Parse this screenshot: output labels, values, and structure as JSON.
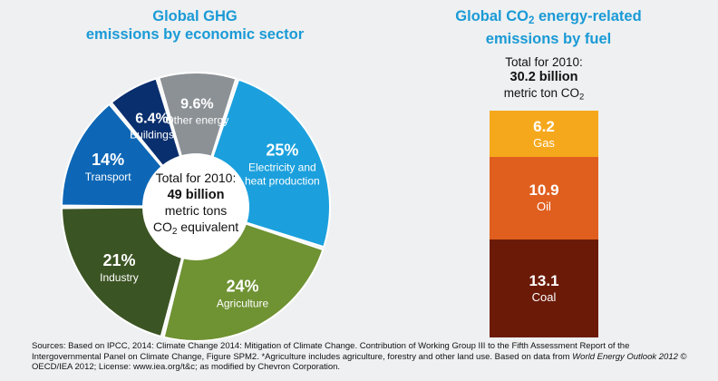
{
  "chart_data": [
    {
      "type": "pie",
      "title": "Global GHG emissions by economic sector",
      "title_lines": [
        "Global GHG",
        "emissions by economic sector"
      ],
      "center_text": {
        "line1": "Total for 2010:",
        "value": "49 billion",
        "line3": "metric tons",
        "line4_prefix": "CO",
        "line4_sub": "2",
        "line4_suffix": " equivalent"
      },
      "slices": [
        {
          "label": "Electricity and heat production",
          "label_lines": [
            "Electricity and",
            "heat production"
          ],
          "value": 25,
          "value_label": "25%",
          "color": "#1ba0dd"
        },
        {
          "label": "Agriculture",
          "label_lines": [
            "Agriculture"
          ],
          "value": 24,
          "value_label": "24%",
          "color": "#6f9233"
        },
        {
          "label": "Industry",
          "label_lines": [
            "Industry"
          ],
          "value": 21,
          "value_label": "21%",
          "color": "#3b5423"
        },
        {
          "label": "Transport",
          "label_lines": [
            "Transport"
          ],
          "value": 14,
          "value_label": "14%",
          "color": "#0d67b6"
        },
        {
          "label": "Buildings",
          "label_lines": [
            "Buildings"
          ],
          "value": 6.4,
          "value_label": "6.4%",
          "color": "#0a2f6e"
        },
        {
          "label": "Other energy",
          "label_lines": [
            "Other energy"
          ],
          "value": 9.6,
          "value_label": "9.6%",
          "color": "#8c9196"
        }
      ]
    },
    {
      "type": "bar",
      "stacked": true,
      "title": "Global CO2 energy-related emissions by fuel",
      "title_lines": [
        "Global CO",
        "2",
        " energy-related",
        "emissions by fuel"
      ],
      "total_text": {
        "line1": "Total for 2010:",
        "value": "30.2 billion",
        "unit_prefix": "metric ton CO",
        "unit_sub": "2"
      },
      "segments": [
        {
          "label": "Gas",
          "value": 6.2,
          "value_label": "6.2",
          "color": "#f6a81c"
        },
        {
          "label": "Oil",
          "value": 10.9,
          "value_label": "10.9",
          "color": "#e05f1f"
        },
        {
          "label": "Coal",
          "value": 13.1,
          "value_label": "13.1",
          "color": "#6b1a08"
        }
      ]
    }
  ],
  "source_note": {
    "text1": "Sources: Based on IPCC, 2014: Climate Change 2014: Mitigation of Climate Change. Contribution of Working Group III to the Fifth Assessment Report of the Intergovernmental Panel on Climate Change, Figure SPM2. *Agriculture includes agriculture, forestry and other land use. Based on data from ",
    "italic": "World Energy Outlook 2012",
    "text2": " © OECD/IEA 2012; License: www.iea.org/t&c; as modified by Chevron Corporation."
  }
}
